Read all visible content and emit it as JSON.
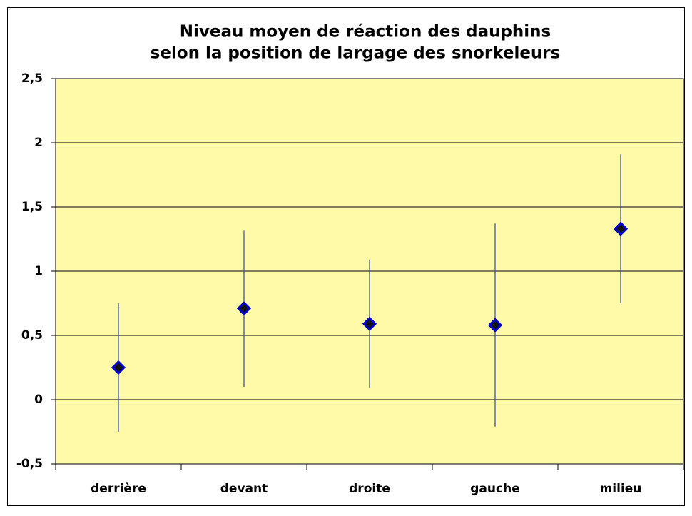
{
  "chart_data": {
    "type": "scatter",
    "title": [
      "Niveau moyen de réaction des dauphins",
      "selon la position de largage des snorkeleurs"
    ],
    "categories": [
      "derrière",
      "devant",
      "droite",
      "gauche",
      "milieu"
    ],
    "values": [
      0.25,
      0.71,
      0.59,
      0.58,
      1.33
    ],
    "errors": [
      0.5,
      0.61,
      0.5,
      0.79,
      0.58
    ],
    "color": "#0000cc",
    "error_color": "#3344aa",
    "background": "#fffaa8",
    "ylim": [
      -0.5,
      2.5
    ],
    "yticks": [
      {
        "value": -0.5,
        "label": "-0,5"
      },
      0,
      {
        "value": 0.5,
        "label": "0,5"
      },
      1,
      {
        "value": 1.5,
        "label": "1,5"
      },
      2,
      {
        "value": 2.5,
        "label": "2,5"
      }
    ],
    "grid": true
  }
}
